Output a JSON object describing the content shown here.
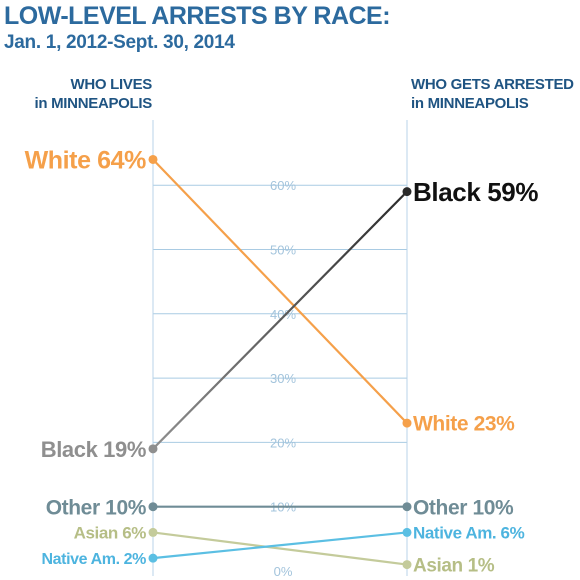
{
  "header": {
    "title": "LOW-LEVEL ARRESTS BY RACE:",
    "subtitle": "Jan. 1, 2012-Sept. 30, 2014"
  },
  "columns": {
    "left": {
      "line1": "WHO LIVES",
      "line2": "in MINNEAPOLIS"
    },
    "right": {
      "line1": "WHO GETS ARRESTED",
      "line2": "in MINNEAPOLIS"
    }
  },
  "colors": {
    "title": "#2c6a9e",
    "subtitle": "#2c6a9e",
    "column_header": "#1f5482",
    "grid": "#a9cbe3",
    "tick_label": "#a3c4dc",
    "axis": "#b8d3e8"
  },
  "chart_data": {
    "type": "slope",
    "categories": [
      "WHO LIVES in MINNEAPOLIS",
      "WHO GETS ARRESTED in MINNEAPOLIS"
    ],
    "ylim": [
      0,
      64
    ],
    "y_ticks": [
      0,
      10,
      20,
      30,
      40,
      50,
      60
    ],
    "y_tick_labels": [
      "0%",
      "10%",
      "20%",
      "30%",
      "40%",
      "50%",
      "60%"
    ],
    "grid": true,
    "series": [
      {
        "name": "White",
        "values": [
          64,
          23
        ],
        "color": "#f5a04a",
        "label_color": "#f5a04a",
        "left_label": "White 64%",
        "right_label": "White 23%"
      },
      {
        "name": "Black",
        "values": [
          19,
          59
        ],
        "color": "#8f8f8f",
        "right_color": "#2a2a2a",
        "label_color": "#8f8f8f",
        "right_label_color": "#111111",
        "left_label": "Black 19%",
        "right_label": "Black 59%"
      },
      {
        "name": "Other",
        "values": [
          10,
          10
        ],
        "color": "#6f8c96",
        "label_color": "#6f8c96",
        "left_label": "Other 10%",
        "right_label": "Other 10%"
      },
      {
        "name": "Asian",
        "values": [
          6,
          1
        ],
        "color": "#c4cb9b",
        "label_color": "#b6be86",
        "left_label": "Asian 6%",
        "right_label": "Asian 1%"
      },
      {
        "name": "Native Am.",
        "values": [
          2,
          6
        ],
        "color": "#5bbfe3",
        "label_color": "#4db4df",
        "left_label": "Native Am. 2%",
        "right_label": "Native Am. 6%"
      }
    ]
  }
}
